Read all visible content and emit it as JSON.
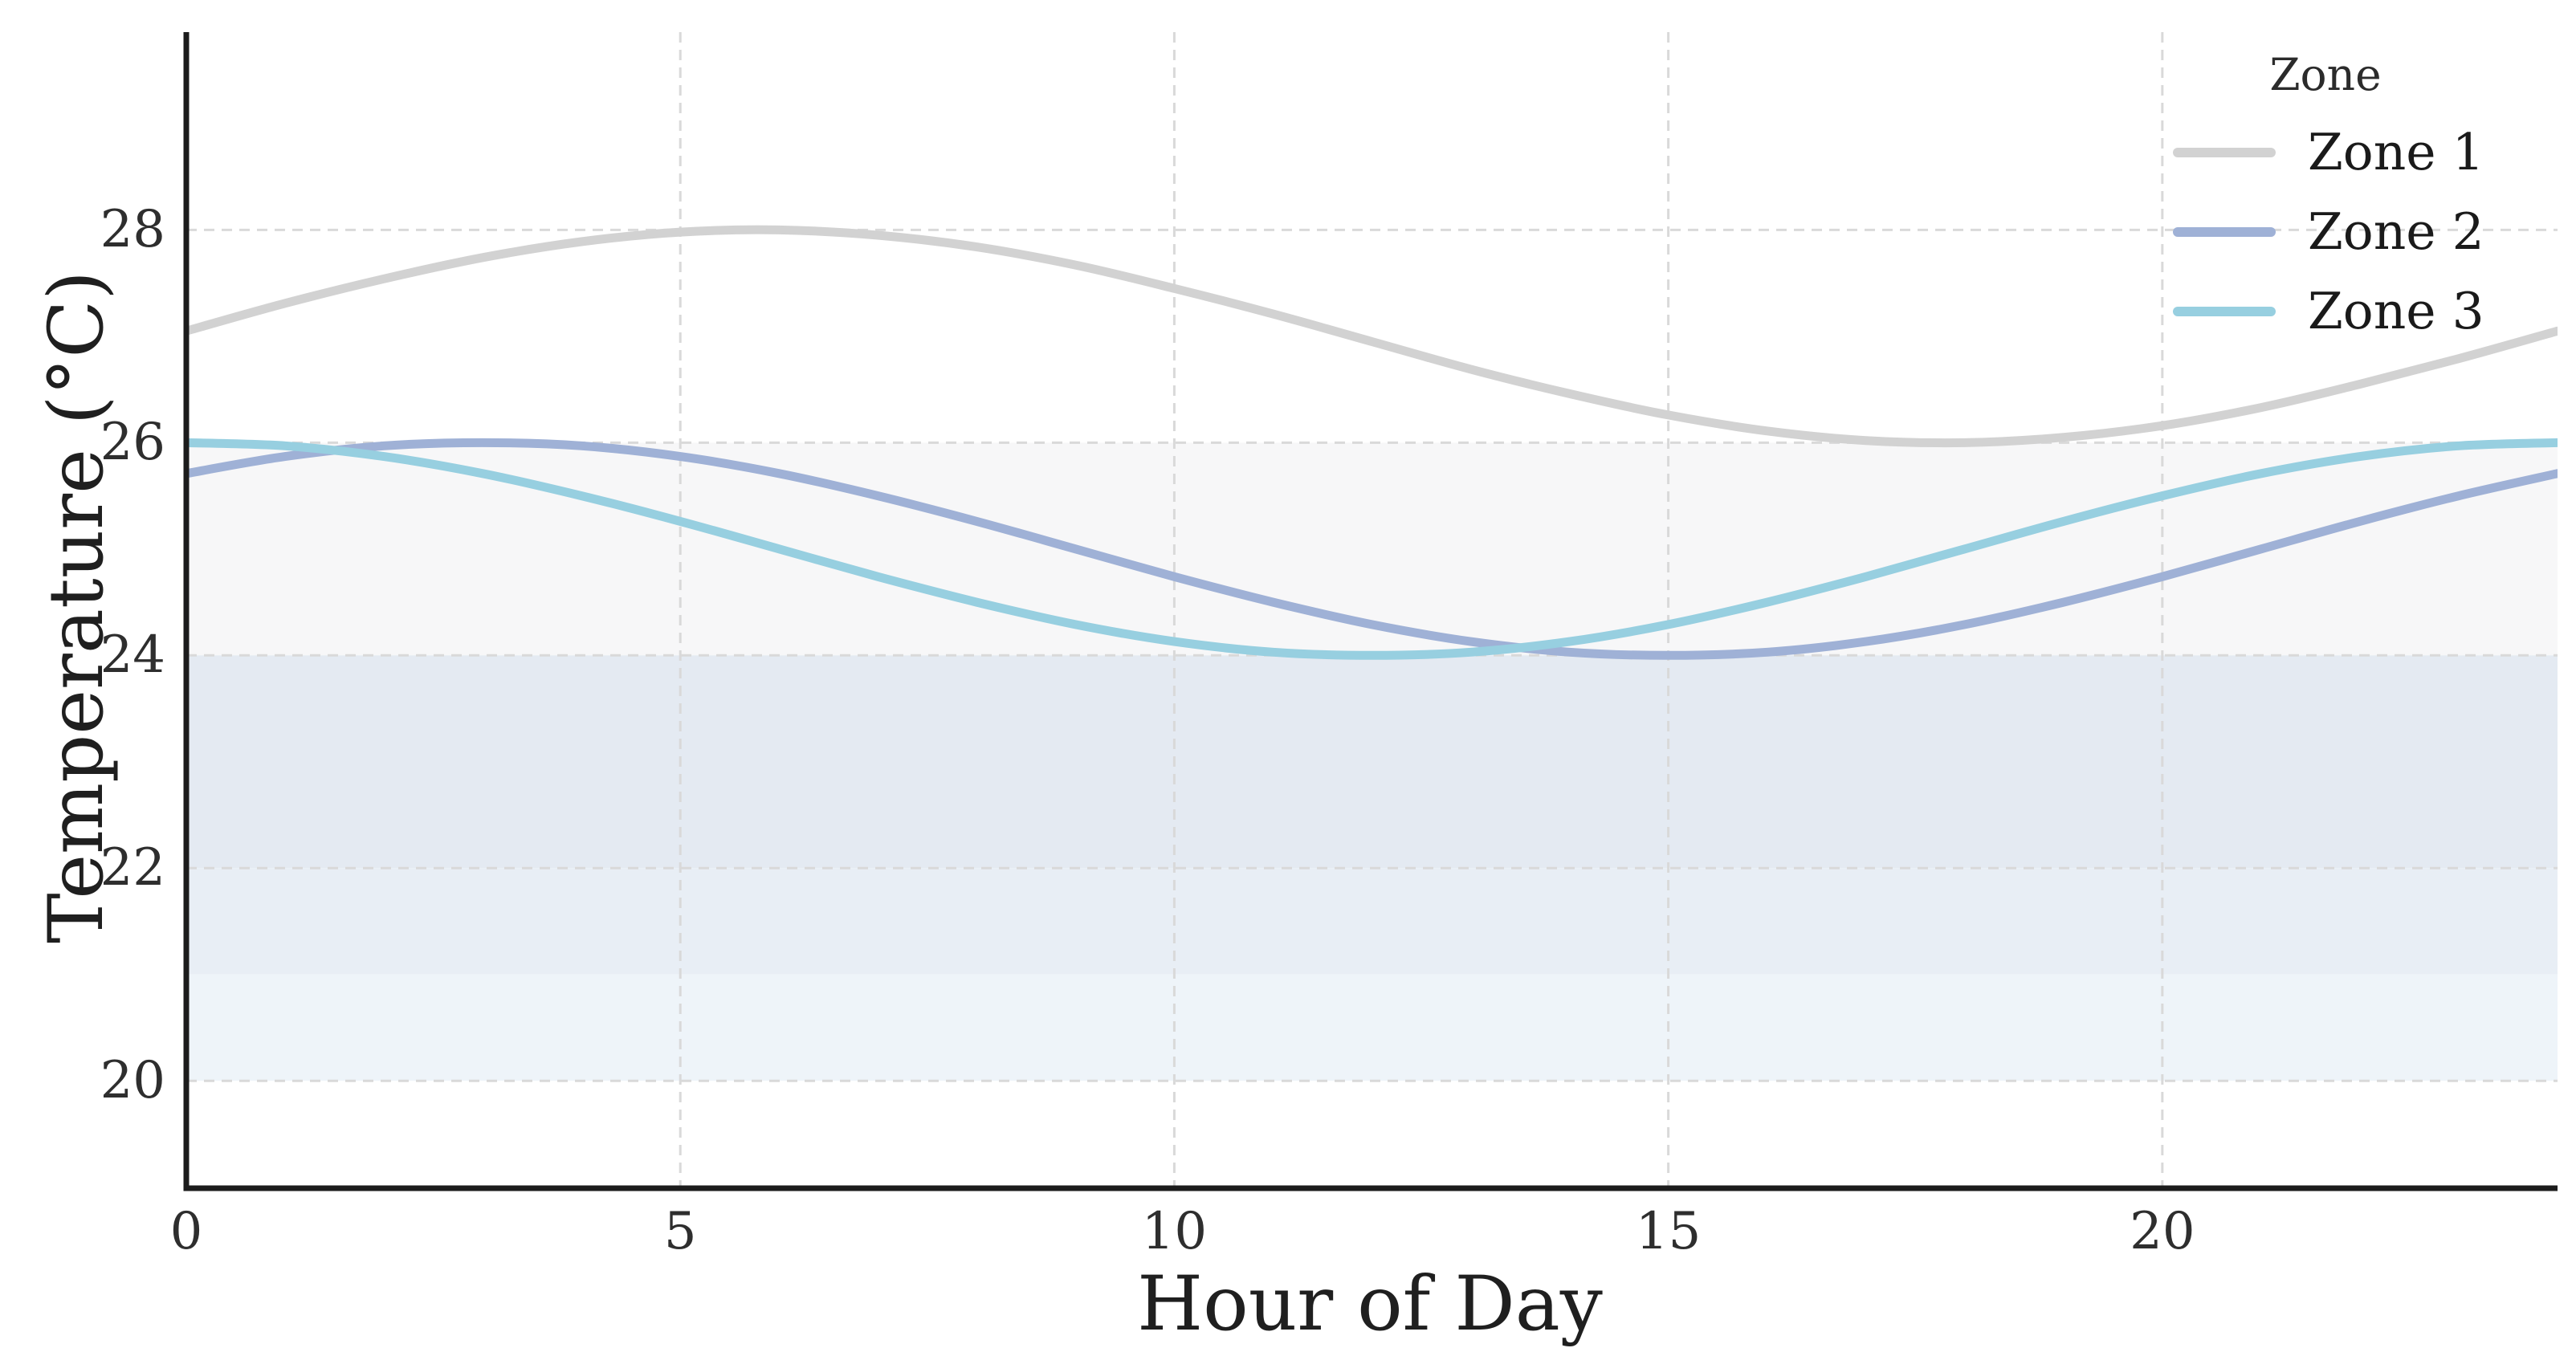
{
  "page": {
    "background": "#ffffff"
  },
  "chart_data": {
    "type": "line",
    "title": "",
    "xlabel": "Hour of Day",
    "ylabel": "Temperature (°C)",
    "legend": {
      "title": "Zone",
      "position": "upper right",
      "entries": [
        "Zone 1",
        "Zone 2",
        "Zone 3"
      ]
    },
    "x": [
      0,
      1,
      2,
      3,
      4,
      5,
      6,
      7,
      8,
      9,
      10,
      11,
      12,
      13,
      14,
      15,
      16,
      17,
      18,
      19,
      20,
      21,
      22,
      23,
      24
    ],
    "series": [
      {
        "name": "Zone 1",
        "color": "#d2d2d2",
        "values": [
          27.05,
          27.31,
          27.54,
          27.74,
          27.89,
          27.98,
          28.0,
          27.95,
          27.84,
          27.67,
          27.45,
          27.21,
          26.95,
          26.69,
          26.46,
          26.26,
          26.11,
          26.02,
          26.0,
          26.05,
          26.16,
          26.33,
          26.55,
          26.79,
          27.05
        ]
      },
      {
        "name": "Zone 2",
        "color": "#9fb1d6",
        "values": [
          25.71,
          25.87,
          25.97,
          26.0,
          25.97,
          25.87,
          25.71,
          25.5,
          25.26,
          25.0,
          24.74,
          24.5,
          24.29,
          24.13,
          24.03,
          24.0,
          24.03,
          24.13,
          24.29,
          24.5,
          24.74,
          25.0,
          25.26,
          25.5,
          25.71
        ]
      },
      {
        "name": "Zone 3",
        "color": "#97cfe0",
        "values": [
          26.0,
          25.97,
          25.87,
          25.71,
          25.5,
          25.26,
          25.0,
          24.74,
          24.5,
          24.29,
          24.13,
          24.03,
          24.0,
          24.03,
          24.13,
          24.29,
          24.5,
          24.74,
          25.0,
          25.26,
          25.5,
          25.71,
          25.87,
          25.97,
          26.0
        ]
      }
    ],
    "xlim": [
      0,
      24
    ],
    "ylim": [
      18.99,
      29.86
    ],
    "xticks": [
      0,
      5,
      10,
      15,
      20
    ],
    "yticks": [
      20,
      22,
      24,
      26,
      28
    ],
    "grid": {
      "show": true,
      "style": "dashed",
      "color": "#d9d9d9"
    },
    "bands": [
      {
        "from": 24,
        "to": 26,
        "color": "#f7f7f8",
        "label": "band-24-26"
      },
      {
        "from": 22,
        "to": 24,
        "color": "#e4eaf2",
        "label": "band-22-24"
      },
      {
        "from": 21,
        "to": 22,
        "color": "#e8eef5",
        "label": "band-21-22"
      },
      {
        "from": 20,
        "to": 21,
        "color": "#eef4f9",
        "label": "band-20-21"
      }
    ],
    "colors": {
      "spine": "#1c1c1c",
      "tick_text": "#2e2e2e",
      "label_text": "#1f1f1f"
    }
  }
}
